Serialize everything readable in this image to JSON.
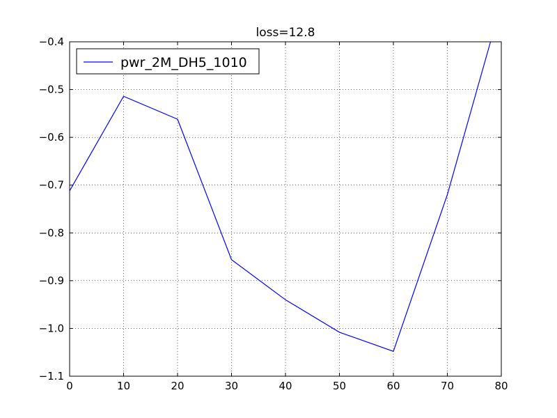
{
  "chart_data": {
    "type": "line",
    "title": "loss=12.8",
    "xlabel": "",
    "ylabel": "",
    "xlim": [
      0,
      80
    ],
    "ylim": [
      -1.1,
      -0.4
    ],
    "xticks": [
      "0",
      "10",
      "20",
      "30",
      "40",
      "50",
      "60",
      "70",
      "80"
    ],
    "yticks": [
      "−0.4",
      "−0.5",
      "−0.6",
      "−0.7",
      "−0.8",
      "−0.9",
      "−1.0",
      "−1.1"
    ],
    "grid": true,
    "legend_position": "top-left",
    "series": [
      {
        "name": "pwr_2M_DH5_1010",
        "color": "#0000ff",
        "x": [
          0,
          10,
          20,
          30,
          40,
          50,
          60,
          70,
          78
        ],
        "y": [
          -0.712,
          -0.514,
          -0.562,
          -0.856,
          -0.94,
          -1.008,
          -1.048,
          -0.72,
          -0.4
        ]
      }
    ]
  }
}
